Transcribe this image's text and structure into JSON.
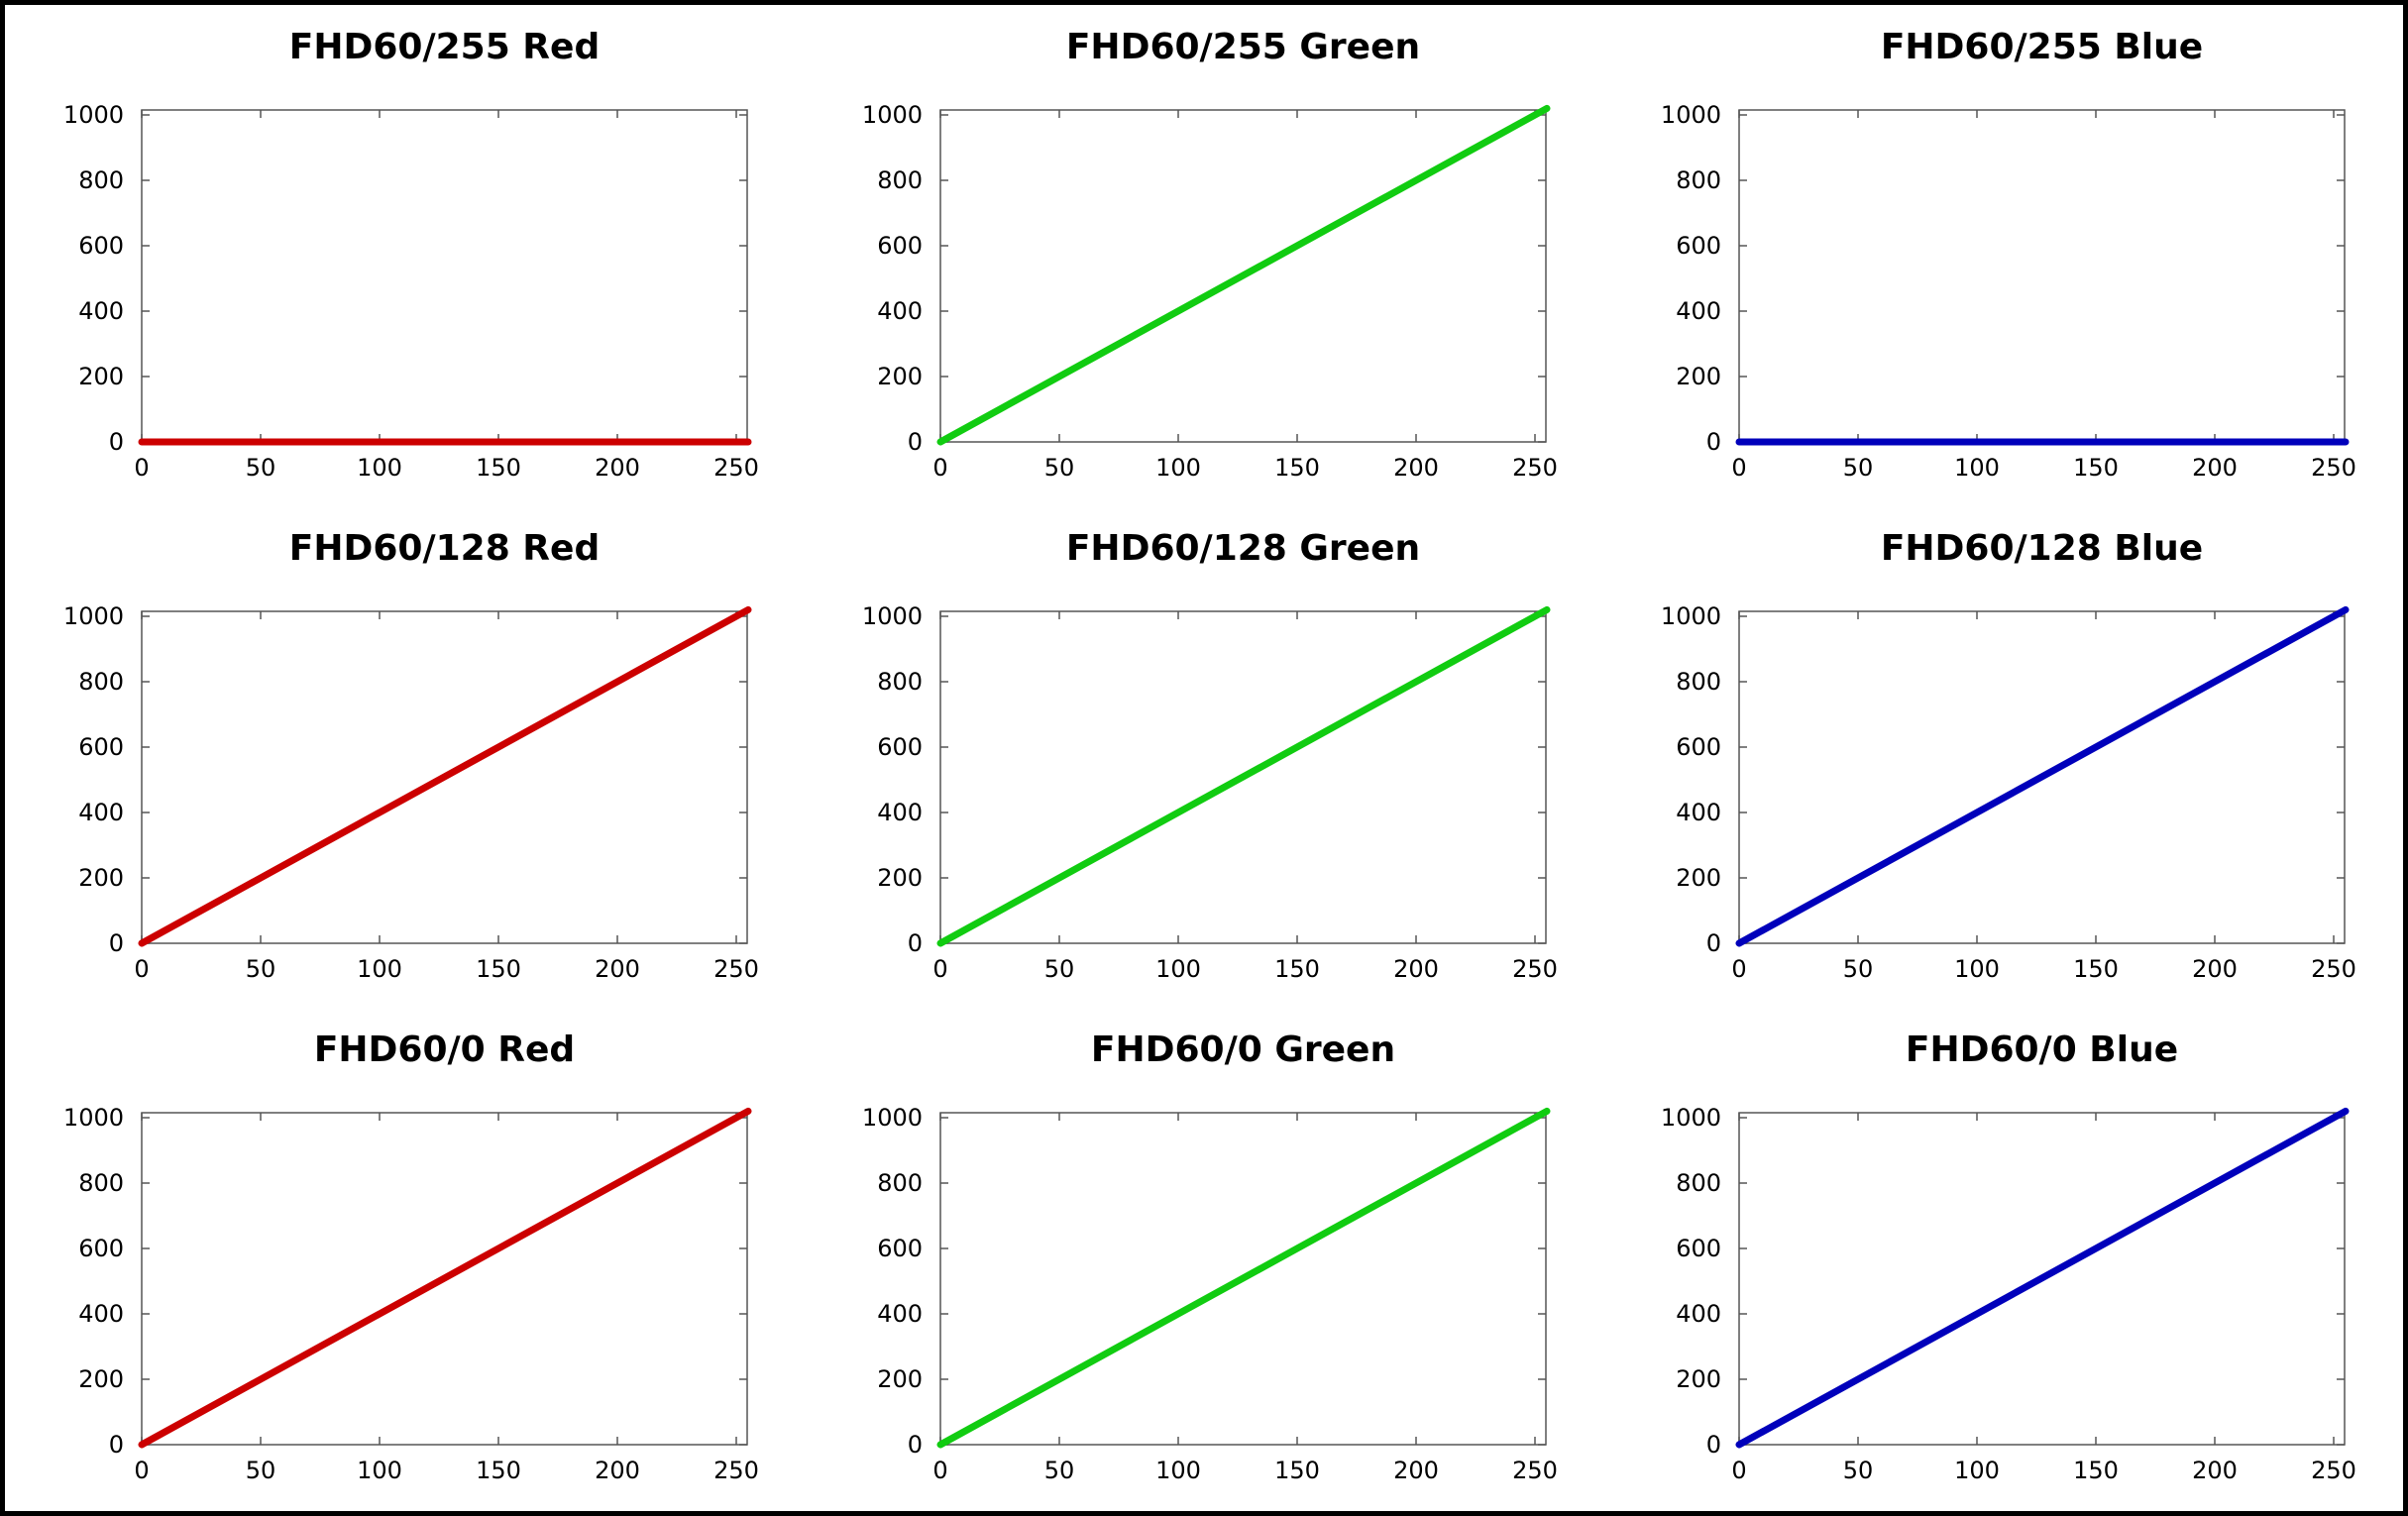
{
  "chart_data": [
    {
      "type": "line",
      "title": "FHD60/255 Red",
      "color": "#cc0000",
      "xlim": [
        0,
        255
      ],
      "ylim": [
        0,
        1000
      ],
      "xticks": [
        "0",
        "50",
        "100",
        "150",
        "200",
        "250"
      ],
      "yticks": [
        "0",
        "200",
        "400",
        "600",
        "800",
        "1000"
      ],
      "series": [
        {
          "x": [
            0,
            255
          ],
          "y": [
            0,
            0
          ]
        }
      ]
    },
    {
      "type": "line",
      "title": "FHD60/255 Green",
      "color": "#11cc11",
      "xlim": [
        0,
        255
      ],
      "ylim": [
        0,
        1000
      ],
      "xticks": [
        "0",
        "50",
        "100",
        "150",
        "200",
        "250"
      ],
      "yticks": [
        "0",
        "200",
        "400",
        "600",
        "800",
        "1000"
      ],
      "series": [
        {
          "x": [
            0,
            255
          ],
          "y": [
            0,
            1020
          ]
        }
      ]
    },
    {
      "type": "line",
      "title": "FHD60/255 Blue",
      "color": "#0000bb",
      "xlim": [
        0,
        255
      ],
      "ylim": [
        0,
        1000
      ],
      "xticks": [
        "0",
        "50",
        "100",
        "150",
        "200",
        "250"
      ],
      "yticks": [
        "0",
        "200",
        "400",
        "600",
        "800",
        "1000"
      ],
      "series": [
        {
          "x": [
            0,
            255
          ],
          "y": [
            0,
            0
          ]
        }
      ]
    },
    {
      "type": "line",
      "title": "FHD60/128 Red",
      "color": "#cc0000",
      "xlim": [
        0,
        255
      ],
      "ylim": [
        0,
        1000
      ],
      "xticks": [
        "0",
        "50",
        "100",
        "150",
        "200",
        "250"
      ],
      "yticks": [
        "0",
        "200",
        "400",
        "600",
        "800",
        "1000"
      ],
      "series": [
        {
          "x": [
            0,
            255
          ],
          "y": [
            0,
            1020
          ]
        }
      ]
    },
    {
      "type": "line",
      "title": "FHD60/128 Green",
      "color": "#11cc11",
      "xlim": [
        0,
        255
      ],
      "ylim": [
        0,
        1000
      ],
      "xticks": [
        "0",
        "50",
        "100",
        "150",
        "200",
        "250"
      ],
      "yticks": [
        "0",
        "200",
        "400",
        "600",
        "800",
        "1000"
      ],
      "series": [
        {
          "x": [
            0,
            255
          ],
          "y": [
            0,
            1020
          ]
        }
      ]
    },
    {
      "type": "line",
      "title": "FHD60/128 Blue",
      "color": "#0000bb",
      "xlim": [
        0,
        255
      ],
      "ylim": [
        0,
        1000
      ],
      "xticks": [
        "0",
        "50",
        "100",
        "150",
        "200",
        "250"
      ],
      "yticks": [
        "0",
        "200",
        "400",
        "600",
        "800",
        "1000"
      ],
      "series": [
        {
          "x": [
            0,
            255
          ],
          "y": [
            0,
            1020
          ]
        }
      ]
    },
    {
      "type": "line",
      "title": "FHD60/0 Red",
      "color": "#cc0000",
      "xlim": [
        0,
        255
      ],
      "ylim": [
        0,
        1000
      ],
      "xticks": [
        "0",
        "50",
        "100",
        "150",
        "200",
        "250"
      ],
      "yticks": [
        "0",
        "200",
        "400",
        "600",
        "800",
        "1000"
      ],
      "series": [
        {
          "x": [
            0,
            255
          ],
          "y": [
            0,
            1020
          ]
        }
      ]
    },
    {
      "type": "line",
      "title": "FHD60/0 Green",
      "color": "#11cc11",
      "xlim": [
        0,
        255
      ],
      "ylim": [
        0,
        1000
      ],
      "xticks": [
        "0",
        "50",
        "100",
        "150",
        "200",
        "250"
      ],
      "yticks": [
        "0",
        "200",
        "400",
        "600",
        "800",
        "1000"
      ],
      "series": [
        {
          "x": [
            0,
            255
          ],
          "y": [
            0,
            1020
          ]
        }
      ]
    },
    {
      "type": "line",
      "title": "FHD60/0 Blue",
      "color": "#0000bb",
      "xlim": [
        0,
        255
      ],
      "ylim": [
        0,
        1000
      ],
      "xticks": [
        "0",
        "50",
        "100",
        "150",
        "200",
        "250"
      ],
      "yticks": [
        "0",
        "200",
        "400",
        "600",
        "800",
        "1000"
      ],
      "series": [
        {
          "x": [
            0,
            255
          ],
          "y": [
            0,
            1020
          ]
        }
      ]
    }
  ]
}
